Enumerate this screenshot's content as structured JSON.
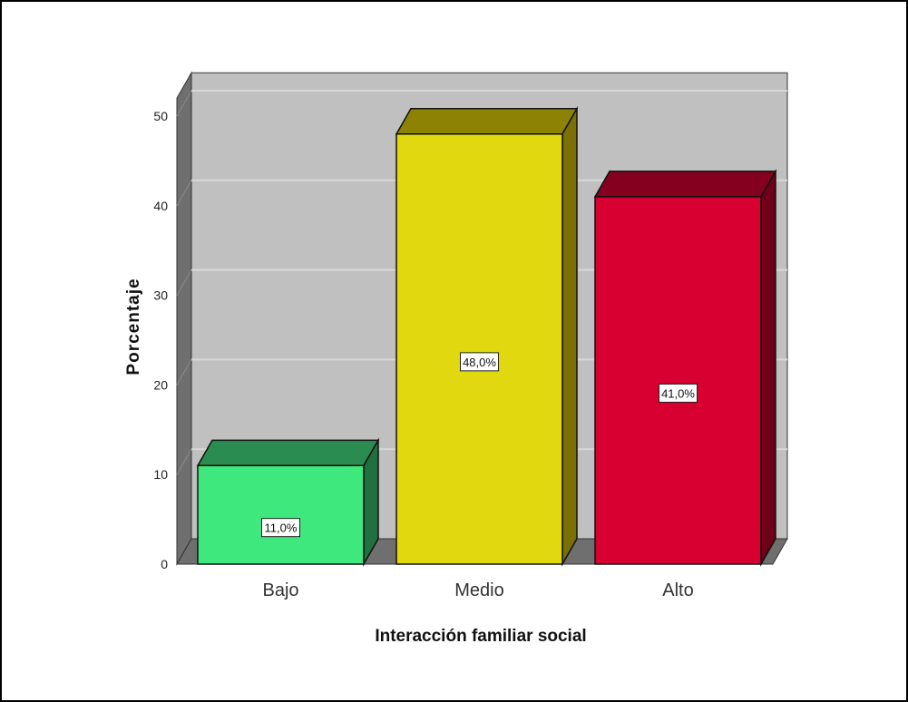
{
  "chart_data": {
    "type": "bar",
    "title": "",
    "xlabel": "Interacción familiar social",
    "ylabel": "Porcentaje",
    "categories": [
      "Bajo",
      "Medio",
      "Alto"
    ],
    "values": [
      11.0,
      48.0,
      41.0
    ],
    "data_labels": [
      "11,0%",
      "48,0%",
      "41,0%"
    ],
    "yticks": [
      0,
      10,
      20,
      30,
      40,
      50
    ],
    "ylim": [
      0,
      52
    ],
    "grid": true,
    "style": "3d",
    "colors": [
      {
        "front": "#3FE87D",
        "top": "#2A8C50",
        "side": "#21703F"
      },
      {
        "front": "#E2D80F",
        "top": "#8E8204",
        "side": "#7A7003"
      },
      {
        "front": "#D80030",
        "top": "#85001F",
        "side": "#6E0019"
      }
    ],
    "wall_color": "#C0C0C0",
    "wall_side_color": "#6F6F6F"
  }
}
